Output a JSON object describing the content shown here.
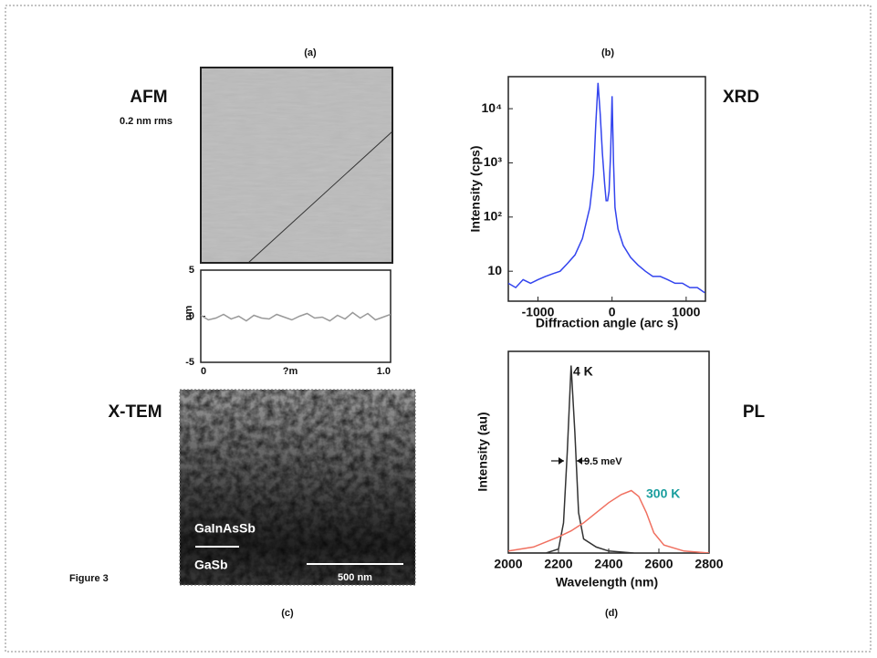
{
  "figure_label": "Figure 3",
  "afm": {
    "panel": "(a)",
    "title": "AFM",
    "subtitle": "0.2 nm rms"
  },
  "tem": {
    "panel": "(c)",
    "title": "X-TEM",
    "layers": [
      "GaInAsSb",
      "GaSb"
    ],
    "scale_bar": "500 nm"
  },
  "chart_data": [
    {
      "type": "line",
      "xlabel": "?m",
      "ylabel": "nm",
      "xlim": [
        0,
        1
      ],
      "xticks": [
        0,
        {
          "value": 1,
          "label": "1.0"
        }
      ],
      "ylim": [
        -5,
        5
      ],
      "yticks": [
        -5,
        0,
        5
      ],
      "series": [
        {
          "color": "#999999",
          "x": [
            0,
            0.04,
            0.08,
            0.12,
            0.16,
            0.2,
            0.24,
            0.28,
            0.32,
            0.36,
            0.4,
            0.44,
            0.48,
            0.52,
            0.56,
            0.6,
            0.64,
            0.68,
            0.72,
            0.76,
            0.8,
            0.84,
            0.88,
            0.92,
            0.96,
            1
          ],
          "values": [
            0.1,
            -0.4,
            -0.2,
            0.2,
            -0.3,
            0,
            -0.5,
            0.1,
            -0.2,
            -0.3,
            0.2,
            -0.1,
            -0.4,
            0,
            0.3,
            -0.2,
            -0.1,
            -0.5,
            0.1,
            -0.3,
            0.4,
            -0.2,
            0.3,
            -0.4,
            -0.1,
            0.2
          ]
        }
      ]
    },
    {
      "type": "line",
      "panel": "(b)",
      "annotations": [
        "XRD"
      ],
      "xlabel": "Diffraction angle (arc s)",
      "ylabel": "Intensity (cps)",
      "log_scale": true,
      "xlim": [
        -1400,
        1260
      ],
      "xticks": [
        -1000,
        0,
        1000
      ],
      "ylim": [
        2.8,
        39000
      ],
      "yticks": [
        10,
        {
          "value": 100,
          "label": "10²"
        },
        {
          "value": 1000,
          "label": "10³"
        },
        {
          "value": 10000,
          "label": "10⁴"
        }
      ],
      "series": [
        {
          "color": "#3344ee",
          "x": [
            -1400,
            -1300,
            -1200,
            -1100,
            -1000,
            -900,
            -800,
            -700,
            -600,
            -500,
            -400,
            -300,
            -250,
            -220,
            -190,
            -160,
            -130,
            -100,
            -80,
            -60,
            -40,
            -20,
            0,
            20,
            40,
            80,
            150,
            250,
            350,
            450,
            550,
            650,
            750,
            850,
            950,
            1050,
            1150,
            1250
          ],
          "values": [
            6,
            5,
            7,
            6,
            7,
            8,
            9,
            10,
            14,
            20,
            40,
            150,
            600,
            5000,
            30000,
            8000,
            1500,
            400,
            200,
            200,
            300,
            1500,
            17000,
            1000,
            150,
            60,
            30,
            18,
            13,
            10,
            8,
            8,
            7,
            6,
            6,
            5,
            5,
            4
          ]
        }
      ]
    },
    {
      "type": "line",
      "panel": "(d)",
      "annotations": [
        "PL",
        "9.5 meV"
      ],
      "xlabel": "Wavelength (nm)",
      "ylabel": "Intensity (au)",
      "xlim": [
        2000,
        2800
      ],
      "xticks": [
        2000,
        2200,
        2400,
        2600,
        2800
      ],
      "ylim": [
        0,
        1
      ],
      "series": [
        {
          "name": "4 K",
          "color": "#333333",
          "label_color": "#111111",
          "x": [
            2000,
            2150,
            2200,
            2220,
            2235,
            2250,
            2265,
            2280,
            2300,
            2350,
            2400,
            2450,
            2500
          ],
          "values": [
            0,
            0,
            0.02,
            0.15,
            0.5,
            0.93,
            0.6,
            0.2,
            0.07,
            0.03,
            0.01,
            0.005,
            0
          ]
        },
        {
          "name": "300 K",
          "color": "#f07060",
          "label_color": "#1a9e9e",
          "x": [
            2000,
            2100,
            2200,
            2250,
            2300,
            2350,
            2400,
            2450,
            2490,
            2520,
            2550,
            2580,
            2620,
            2700,
            2800
          ],
          "values": [
            0.01,
            0.03,
            0.08,
            0.11,
            0.15,
            0.2,
            0.25,
            0.29,
            0.31,
            0.28,
            0.2,
            0.1,
            0.04,
            0.01,
            0
          ]
        }
      ]
    }
  ]
}
